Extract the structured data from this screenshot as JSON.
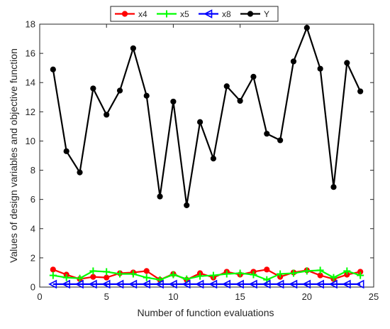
{
  "chart_data": {
    "type": "line",
    "xlabel": "Number of function evaluations",
    "ylabel": "Values of design variables and objective function",
    "xlim": [
      0,
      25
    ],
    "ylim": [
      0,
      18
    ],
    "x_ticks": [
      0,
      5,
      10,
      15,
      20,
      25
    ],
    "y_ticks": [
      0,
      2,
      4,
      6,
      8,
      10,
      12,
      14,
      16,
      18
    ],
    "grid": false,
    "legend_position": "top",
    "x": [
      1,
      2,
      3,
      4,
      5,
      6,
      7,
      8,
      9,
      10,
      11,
      12,
      13,
      14,
      15,
      16,
      17,
      18,
      19,
      20,
      21,
      22,
      23,
      24
    ],
    "series": [
      {
        "name": "x4",
        "color": "#ff0000",
        "marker": "filled-circle",
        "values": [
          1.2,
          0.85,
          0.55,
          0.7,
          0.65,
          0.95,
          1.0,
          1.1,
          0.5,
          0.9,
          0.5,
          0.95,
          0.65,
          1.05,
          0.85,
          1.05,
          1.2,
          0.7,
          1.0,
          1.15,
          0.8,
          0.55,
          0.85,
          1.05
        ]
      },
      {
        "name": "x5",
        "color": "#00ff00",
        "marker": "plus",
        "values": [
          0.8,
          0.65,
          0.6,
          1.1,
          1.05,
          0.9,
          0.9,
          0.65,
          0.5,
          0.85,
          0.55,
          0.75,
          0.8,
          0.9,
          0.95,
          0.85,
          0.5,
          0.9,
          0.95,
          1.1,
          1.15,
          0.65,
          1.1,
          0.8
        ]
      },
      {
        "name": "x8",
        "color": "#0000ff",
        "marker": "left-triangle",
        "values": [
          0.2,
          0.2,
          0.2,
          0.2,
          0.2,
          0.2,
          0.2,
          0.2,
          0.2,
          0.2,
          0.2,
          0.2,
          0.2,
          0.2,
          0.2,
          0.2,
          0.2,
          0.2,
          0.2,
          0.2,
          0.2,
          0.2,
          0.2,
          0.2
        ]
      },
      {
        "name": "Y",
        "color": "#000000",
        "marker": "filled-circle",
        "values": [
          14.9,
          9.3,
          7.85,
          13.6,
          11.8,
          13.45,
          16.35,
          13.1,
          6.2,
          12.7,
          5.6,
          11.3,
          8.8,
          13.75,
          12.75,
          14.4,
          10.5,
          10.05,
          15.45,
          17.75,
          14.95,
          6.85,
          15.35,
          13.4
        ]
      }
    ]
  }
}
